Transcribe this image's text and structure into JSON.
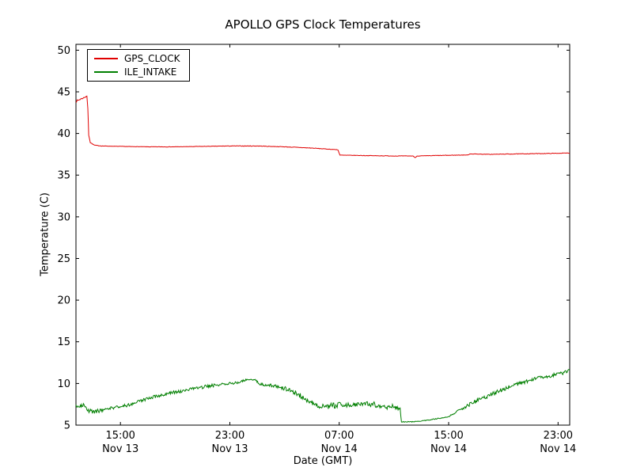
{
  "chart_data": {
    "type": "line",
    "title": "APOLLO GPS Clock Temperatures",
    "xlabel": "Date (GMT)",
    "ylabel": "Temperature (C)",
    "x_unit": "hours since Nov 13 00:00 GMT",
    "xlim": [
      11.75,
      47.85
    ],
    "ylim": [
      5,
      50
    ],
    "yticks": [
      5,
      10,
      15,
      20,
      25,
      30,
      35,
      40,
      45,
      50
    ],
    "xticks": [
      {
        "t": 15,
        "time": "15:00",
        "date": "Nov 13"
      },
      {
        "t": 23,
        "time": "23:00",
        "date": "Nov 13"
      },
      {
        "t": 31,
        "time": "07:00",
        "date": "Nov 14"
      },
      {
        "t": 39,
        "time": "15:00",
        "date": "Nov 14"
      },
      {
        "t": 47,
        "time": "23:00",
        "date": "Nov 14"
      }
    ],
    "legend_position": "upper left",
    "grid": false,
    "noise_seed": 7,
    "series": [
      {
        "name": "GPS_CLOCK",
        "color": "#e00000",
        "points": [
          [
            11.75,
            43.85,
            0.12
          ],
          [
            12.05,
            44.1,
            0.1
          ],
          [
            12.35,
            44.3,
            0.06
          ],
          [
            12.55,
            44.5,
            0.03
          ],
          [
            12.62,
            43.0,
            0.0
          ],
          [
            12.68,
            39.8,
            0.0
          ],
          [
            12.8,
            38.9,
            0.02
          ],
          [
            13.1,
            38.6,
            0.02
          ],
          [
            13.6,
            38.5,
            0.02
          ],
          [
            15.0,
            38.45,
            0.02
          ],
          [
            17.0,
            38.4,
            0.02
          ],
          [
            19.0,
            38.4,
            0.02
          ],
          [
            21.0,
            38.45,
            0.02
          ],
          [
            23.0,
            38.5,
            0.03
          ],
          [
            25.0,
            38.5,
            0.03
          ],
          [
            27.0,
            38.4,
            0.03
          ],
          [
            29.0,
            38.25,
            0.03
          ],
          [
            30.9,
            38.05,
            0.02
          ],
          [
            31.05,
            37.4,
            0.02
          ],
          [
            33.0,
            37.35,
            0.03
          ],
          [
            35.0,
            37.3,
            0.03
          ],
          [
            36.4,
            37.3,
            0.02
          ],
          [
            36.55,
            37.1,
            0.0
          ],
          [
            36.7,
            37.3,
            0.02
          ],
          [
            38.0,
            37.35,
            0.03
          ],
          [
            39.5,
            37.4,
            0.03
          ],
          [
            40.4,
            37.42,
            0.02
          ],
          [
            40.55,
            37.55,
            0.02
          ],
          [
            42.0,
            37.5,
            0.03
          ],
          [
            44.0,
            37.55,
            0.03
          ],
          [
            46.0,
            37.6,
            0.03
          ],
          [
            47.85,
            37.65,
            0.03
          ]
        ]
      },
      {
        "name": "ILE_INTAKE",
        "color": "#007f00",
        "points": [
          [
            11.75,
            7.3,
            0.2
          ],
          [
            12.3,
            7.4,
            0.2
          ],
          [
            12.6,
            6.7,
            0.25
          ],
          [
            13.2,
            6.6,
            0.25
          ],
          [
            13.8,
            6.9,
            0.2
          ],
          [
            14.5,
            7.1,
            0.2
          ],
          [
            15.5,
            7.4,
            0.2
          ],
          [
            16.5,
            7.9,
            0.2
          ],
          [
            17.5,
            8.4,
            0.2
          ],
          [
            18.5,
            8.8,
            0.2
          ],
          [
            19.5,
            9.1,
            0.2
          ],
          [
            20.5,
            9.4,
            0.2
          ],
          [
            21.5,
            9.7,
            0.2
          ],
          [
            22.5,
            9.9,
            0.15
          ],
          [
            23.5,
            10.1,
            0.15
          ],
          [
            24.3,
            10.5,
            0.1
          ],
          [
            24.9,
            10.4,
            0.1
          ],
          [
            25.2,
            9.9,
            0.15
          ],
          [
            26.0,
            9.8,
            0.2
          ],
          [
            27.0,
            9.4,
            0.25
          ],
          [
            27.8,
            8.9,
            0.25
          ],
          [
            28.4,
            8.3,
            0.3
          ],
          [
            29.0,
            7.7,
            0.3
          ],
          [
            29.6,
            7.2,
            0.3
          ],
          [
            30.5,
            7.3,
            0.35
          ],
          [
            31.5,
            7.5,
            0.35
          ],
          [
            32.5,
            7.6,
            0.35
          ],
          [
            33.5,
            7.5,
            0.35
          ],
          [
            34.2,
            7.1,
            0.3
          ],
          [
            34.8,
            7.3,
            0.3
          ],
          [
            35.2,
            7.0,
            0.25
          ],
          [
            35.45,
            6.9,
            0.15
          ],
          [
            35.55,
            5.4,
            0.05
          ],
          [
            36.5,
            5.4,
            0.05
          ],
          [
            37.5,
            5.6,
            0.05
          ],
          [
            38.8,
            5.95,
            0.05
          ],
          [
            39.1,
            6.1,
            0.1
          ],
          [
            40.0,
            7.0,
            0.2
          ],
          [
            41.0,
            7.9,
            0.25
          ],
          [
            42.0,
            8.6,
            0.25
          ],
          [
            43.0,
            9.3,
            0.25
          ],
          [
            44.0,
            9.9,
            0.2
          ],
          [
            45.0,
            10.4,
            0.2
          ],
          [
            45.8,
            10.8,
            0.2
          ],
          [
            46.3,
            10.7,
            0.2
          ],
          [
            46.8,
            11.1,
            0.2
          ],
          [
            47.3,
            11.2,
            0.2
          ],
          [
            47.85,
            11.6,
            0.2
          ]
        ]
      }
    ]
  }
}
